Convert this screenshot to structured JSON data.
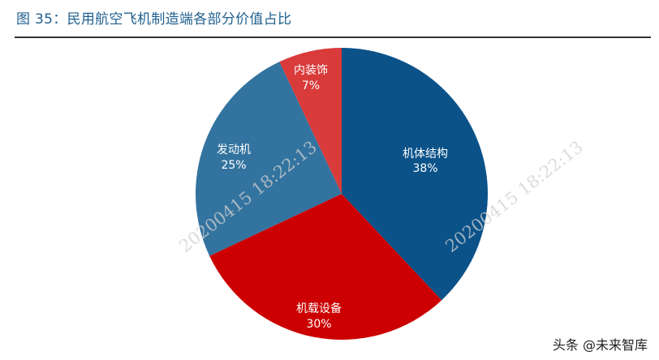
{
  "title": "图 35：民用航空飞机制造端各部分价值占比",
  "watermark": "20200415 18:22:13",
  "source": "头条 @未来智库",
  "colors": {
    "title": "#1f5f8f",
    "airframe": "#0b5289",
    "equipment": "#cc0000",
    "engine": "#33739f",
    "interior": "#d93a3a"
  },
  "chart_data": {
    "type": "pie",
    "title": "图 35：民用航空飞机制造端各部分价值占比",
    "start_angle": "12 o'clock, clockwise",
    "categories": [
      "机体结构",
      "机载设备",
      "发动机",
      "内装饰"
    ],
    "values": [
      38,
      30,
      25,
      7
    ],
    "unit": "%",
    "labels": [
      {
        "name": "机体结构",
        "pct": "38%"
      },
      {
        "name": "机载设备",
        "pct": "30%"
      },
      {
        "name": "发动机",
        "pct": "25%"
      },
      {
        "name": "内装饰",
        "pct": "7%"
      }
    ],
    "legend": "none (labels inside slices)"
  }
}
